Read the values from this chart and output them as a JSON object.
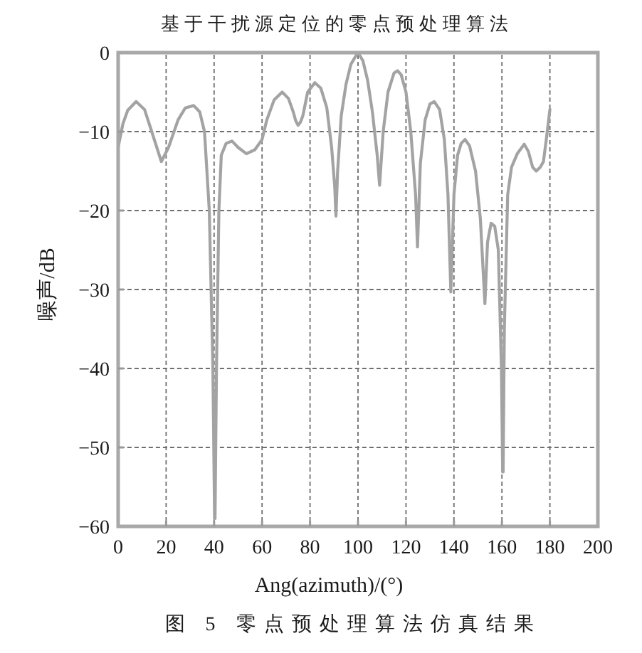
{
  "chart_data": {
    "type": "line",
    "title": "基于干扰源定位的零点预处理算法",
    "xlabel": "Ang(azimuth)/(°)",
    "ylabel": "噪声/dB",
    "annotations": [
      "图 5 零点预处理算法仿真结果"
    ],
    "x": [
      0,
      2,
      4,
      7.5,
      11,
      14,
      18,
      21,
      25,
      28,
      31.5,
      34,
      36,
      38,
      39.5,
      40.2,
      40.4,
      41,
      42,
      43,
      45,
      47.5,
      50,
      53.5,
      57,
      60,
      62,
      65,
      68.4,
      71,
      73,
      74,
      75,
      76,
      77,
      79,
      82,
      84.5,
      87,
      89,
      90.3,
      90.8,
      91.5,
      93,
      95,
      97,
      99.5,
      100,
      102,
      104,
      106,
      108,
      109,
      110.5,
      112.5,
      115,
      116.5,
      118,
      120,
      122,
      124,
      124.8,
      126,
      128,
      130,
      131.8,
      134,
      136,
      137.5,
      138.7,
      140,
      141.5,
      143,
      144.6,
      146.5,
      149,
      151,
      152.9,
      154,
      155.5,
      157,
      158.5,
      159.8,
      160.3,
      160.5,
      161,
      162.4,
      164,
      166.4,
      169.3,
      171,
      172.8,
      174.3,
      176,
      177.3,
      178.5,
      180
    ],
    "values": [
      -12,
      -9,
      -7.3,
      -6.2,
      -7.2,
      -10,
      -13.8,
      -12,
      -8.5,
      -7,
      -6.7,
      -7.5,
      -10,
      -20,
      -40,
      -59,
      -59,
      -40,
      -20,
      -13,
      -11.5,
      -11.2,
      -12,
      -12.8,
      -12.3,
      -11,
      -8.5,
      -6,
      -5,
      -5.8,
      -7.5,
      -8.6,
      -9.2,
      -8.8,
      -8,
      -5,
      -3.8,
      -4.5,
      -7,
      -12,
      -17,
      -20.7,
      -15,
      -8,
      -4,
      -1.5,
      -0.2,
      0,
      -1,
      -3.5,
      -7.5,
      -13,
      -16.8,
      -10,
      -5,
      -2.6,
      -2.3,
      -2.8,
      -5,
      -10,
      -18,
      -24.6,
      -14,
      -8.5,
      -6.5,
      -6.2,
      -7.2,
      -11,
      -18,
      -30.3,
      -18,
      -13,
      -11.5,
      -11,
      -11.8,
      -15,
      -21,
      -31.8,
      -24,
      -21.6,
      -22,
      -25,
      -40,
      -53.1,
      -53.1,
      -35,
      -18,
      -14.5,
      -12.8,
      -11.6,
      -12.5,
      -14.5,
      -15,
      -14.5,
      -13.8,
      -11,
      -7.2
    ],
    "color": "#a3a3a3",
    "line_style": "solid",
    "xlim": [
      0,
      200
    ],
    "xticks": [
      0,
      20,
      40,
      60,
      80,
      100,
      120,
      140,
      160,
      180,
      200
    ],
    "ylim": [
      -60,
      0
    ],
    "yticks": [
      -60,
      -50,
      -40,
      -30,
      -20,
      -10,
      0
    ],
    "grid": true
  }
}
